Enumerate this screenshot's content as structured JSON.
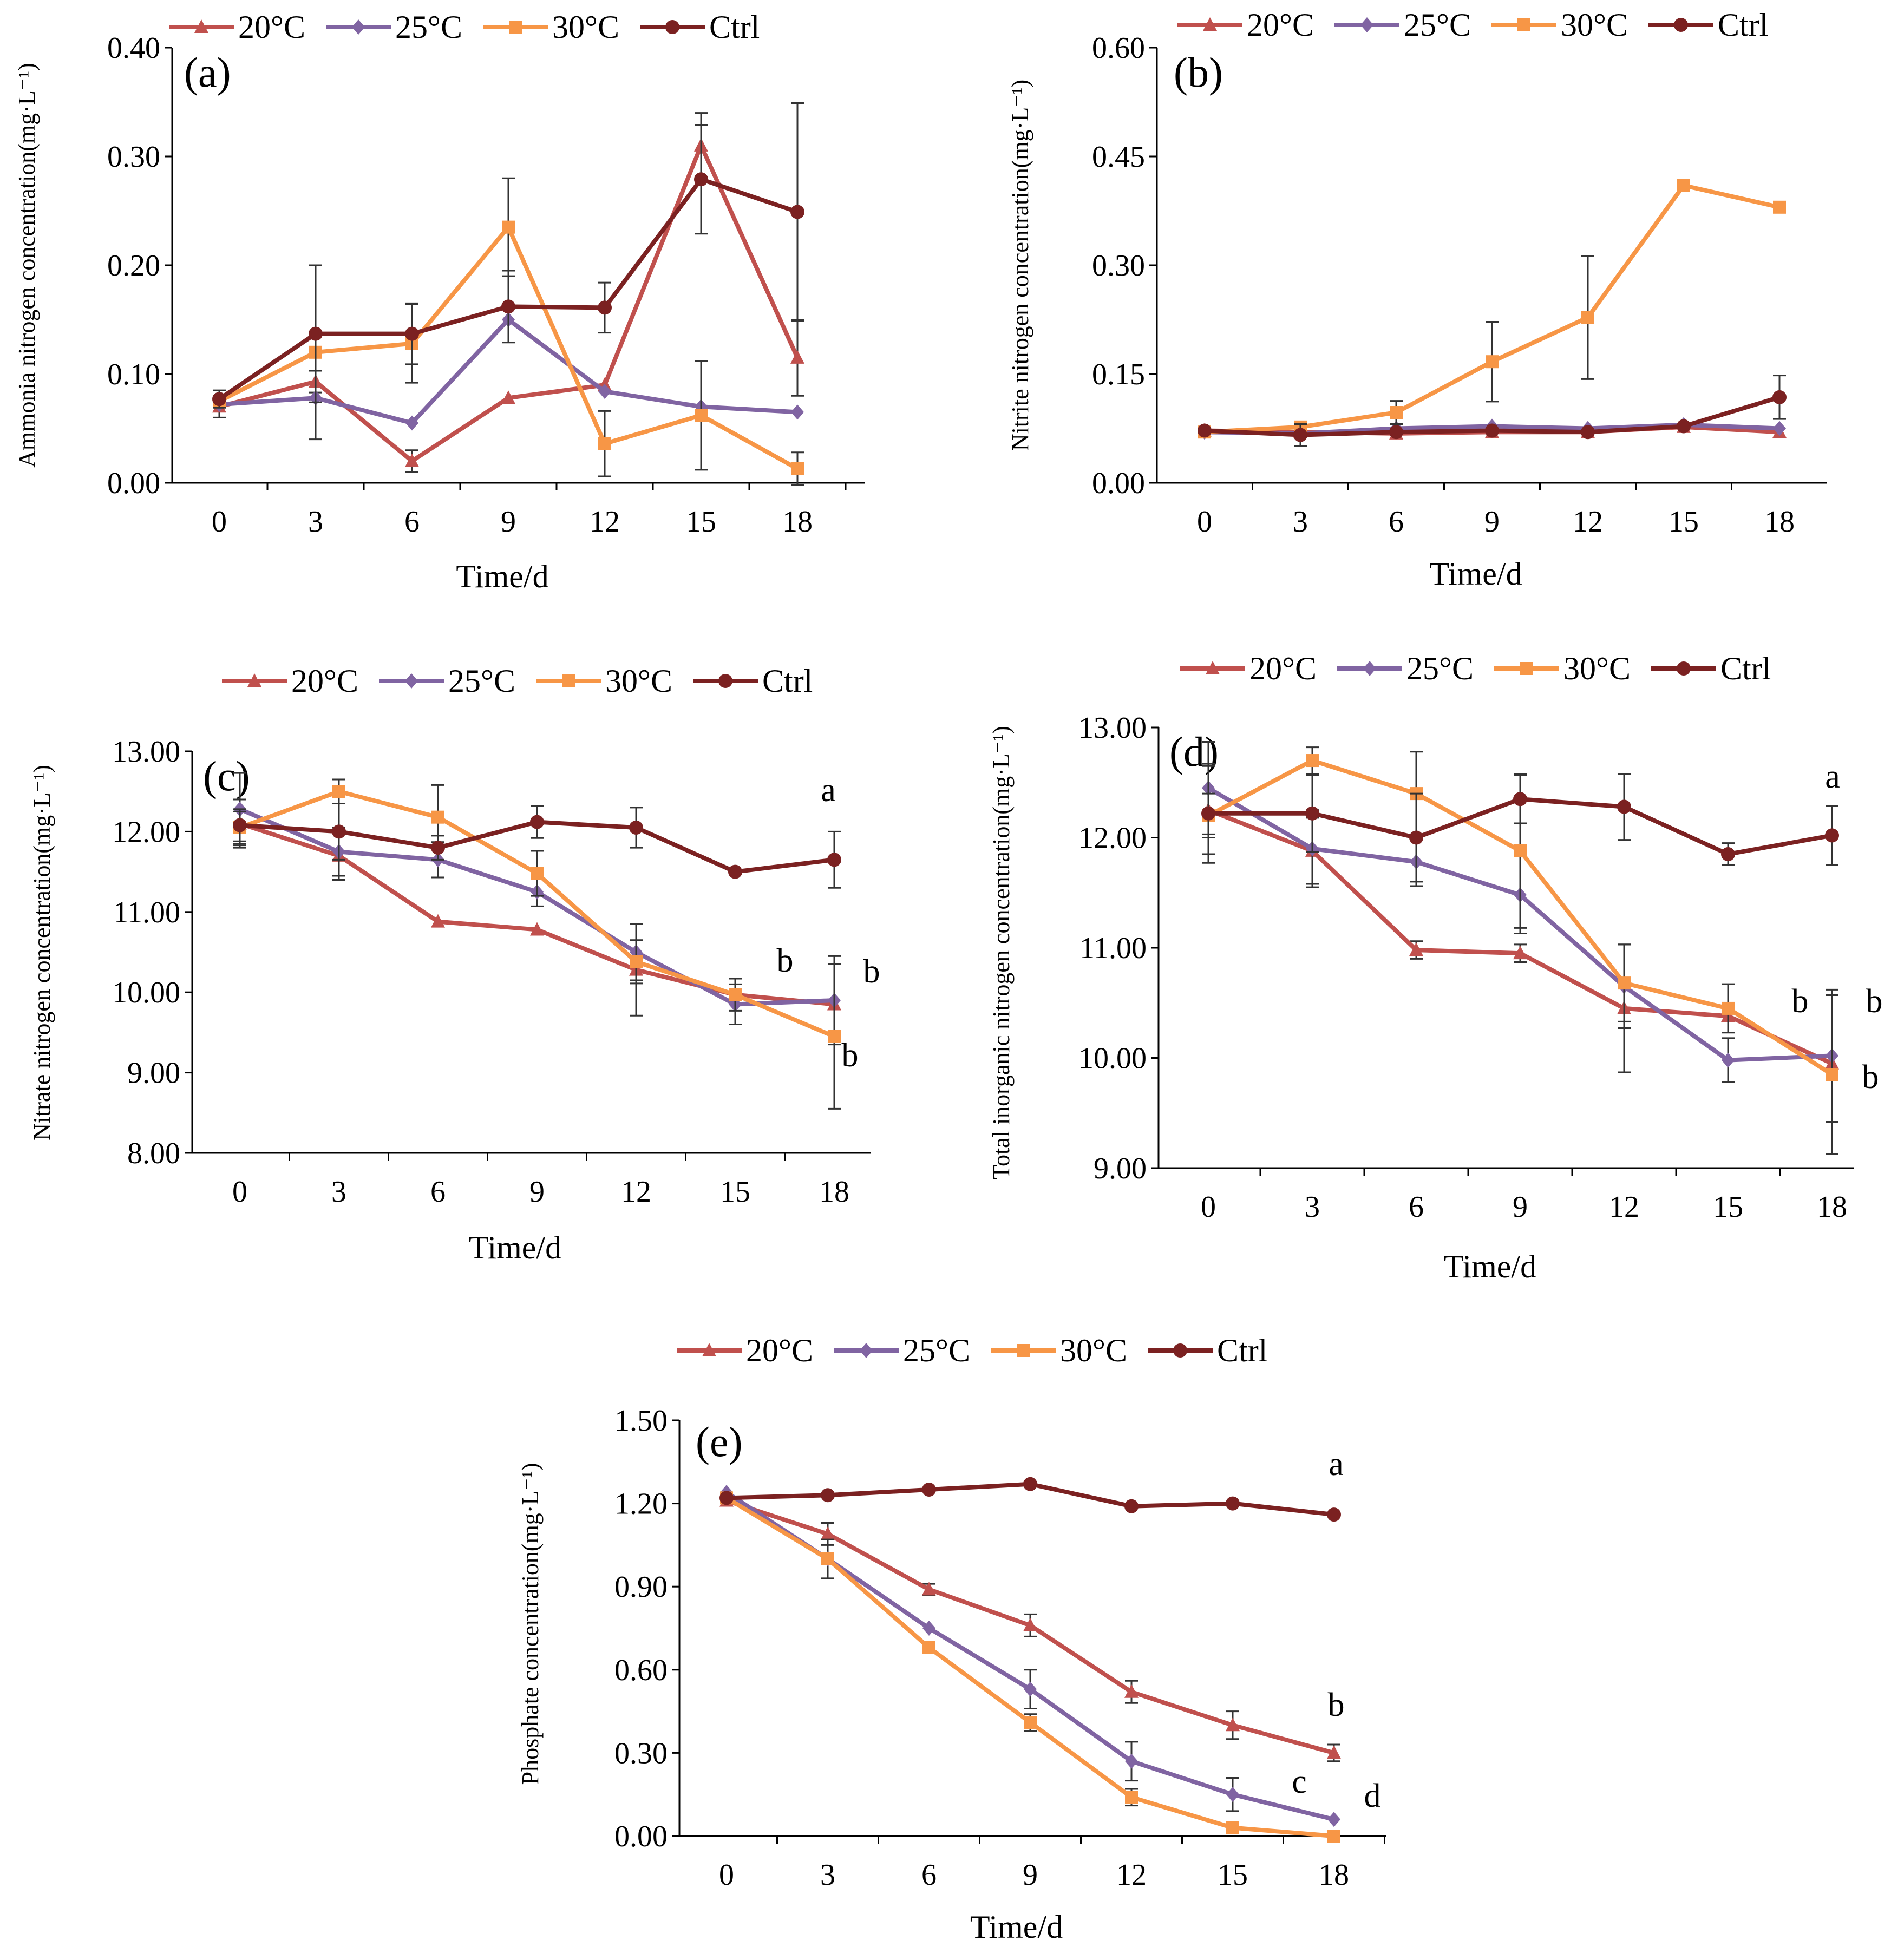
{
  "legend_labels": [
    "20°C",
    "25°C",
    "30°C",
    "Ctrl"
  ],
  "series_colors": {
    "20°C": "#c0504d",
    "25°C": "#8064a2",
    "30°C": "#f79646",
    "Ctrl": "#7b2121"
  },
  "marker_shapes": {
    "20°C": "triangle",
    "25°C": "diamond",
    "30°C": "square",
    "Ctrl": "circle"
  },
  "chart_data": [
    {
      "panel": "(a)",
      "type": "line",
      "xlabel": "Time/d",
      "ylabel": "Ammonia nitrogen concentration(mg·L⁻¹)",
      "x": [
        0,
        3,
        6,
        9,
        12,
        15,
        18
      ],
      "yticks": [
        "0.00",
        "0.10",
        "0.20",
        "0.30",
        "0.40"
      ],
      "ylim": [
        0,
        0.4
      ],
      "series": [
        {
          "name": "20°C",
          "values": [
            0.07,
            0.093,
            0.02,
            0.078,
            0.09,
            0.31,
            0.115
          ],
          "errors": [
            0.01,
            0.01,
            0.01,
            0.0,
            0.0,
            0.03,
            0.035
          ]
        },
        {
          "name": "25°C",
          "values": [
            0.072,
            0.078,
            0.055,
            0.15,
            0.084,
            0.07,
            0.065
          ],
          "errors": [
            0.0,
            0.0,
            0.0,
            0.0,
            0.0,
            0.0,
            0.0
          ]
        },
        {
          "name": "30°C",
          "values": [
            0.075,
            0.12,
            0.128,
            0.235,
            0.036,
            0.062,
            0.013
          ],
          "errors": [
            0.0,
            0.08,
            0.036,
            0.045,
            0.03,
            0.05,
            0.015
          ]
        },
        {
          "name": "Ctrl",
          "values": [
            0.077,
            0.137,
            0.137,
            0.162,
            0.161,
            0.279,
            0.249
          ],
          "errors": [
            0.008,
            0.063,
            0.028,
            0.033,
            0.023,
            0.05,
            0.1
          ]
        }
      ],
      "sig_labels": []
    },
    {
      "panel": "(b)",
      "type": "line",
      "xlabel": "Time/d",
      "ylabel": "Nitrite nitrogen concentration(mg·L⁻¹)",
      "x": [
        0,
        3,
        6,
        9,
        12,
        15,
        18
      ],
      "yticks": [
        "0.00",
        "0.15",
        "0.30",
        "0.45",
        "0.60"
      ],
      "ylim": [
        0,
        0.6
      ],
      "series": [
        {
          "name": "20°C",
          "values": [
            0.072,
            0.07,
            0.068,
            0.07,
            0.07,
            0.077,
            0.07
          ],
          "errors": [
            0,
            0,
            0,
            0,
            0,
            0,
            0
          ]
        },
        {
          "name": "25°C",
          "values": [
            0.07,
            0.068,
            0.075,
            0.078,
            0.075,
            0.08,
            0.075
          ],
          "errors": [
            0,
            0,
            0,
            0,
            0,
            0,
            0
          ]
        },
        {
          "name": "30°C",
          "values": [
            0.07,
            0.077,
            0.097,
            0.167,
            0.228,
            0.41,
            0.38
          ],
          "errors": [
            0,
            0,
            0.016,
            0.055,
            0.085,
            0,
            0
          ]
        },
        {
          "name": "Ctrl",
          "values": [
            0.072,
            0.066,
            0.07,
            0.072,
            0.07,
            0.078,
            0.118
          ],
          "errors": [
            0,
            0.015,
            0,
            0,
            0,
            0,
            0.03
          ]
        }
      ],
      "sig_labels": []
    },
    {
      "panel": "(c)",
      "type": "line",
      "xlabel": "Time/d",
      "ylabel": "Nitrate nitrogen concentration(mg·L⁻¹)",
      "x": [
        0,
        3,
        6,
        9,
        12,
        15,
        18
      ],
      "yticks": [
        "8.00",
        "9.00",
        "10.00",
        "11.00",
        "12.00",
        "13.00"
      ],
      "ylim": [
        8,
        13
      ],
      "series": [
        {
          "name": "20°C",
          "values": [
            12.1,
            11.7,
            10.88,
            10.78,
            10.28,
            9.97,
            9.85
          ],
          "errors": [
            0.3,
            0.3,
            0,
            0,
            0.57,
            0,
            0
          ]
        },
        {
          "name": "25°C",
          "values": [
            12.28,
            11.75,
            11.65,
            11.25,
            10.5,
            9.85,
            9.9
          ],
          "errors": [
            0.45,
            0.3,
            0.22,
            0.18,
            0.35,
            0.25,
            0.55
          ]
        },
        {
          "name": "30°C",
          "values": [
            12.05,
            12.5,
            12.18,
            11.48,
            10.38,
            9.97,
            9.45
          ],
          "errors": [
            0.2,
            0.15,
            0.4,
            0.28,
            0.27,
            0.2,
            0.9
          ]
        },
        {
          "name": "Ctrl",
          "values": [
            12.08,
            12.0,
            11.8,
            12.12,
            12.05,
            11.5,
            11.65
          ],
          "errors": [
            0.2,
            0.35,
            0.15,
            0.2,
            0.25,
            0,
            0.35
          ]
        }
      ],
      "sig_labels": [
        "a",
        "b",
        "b",
        "b"
      ]
    },
    {
      "panel": "(d)",
      "type": "line",
      "xlabel": "Time/d",
      "ylabel": "Total inorganic nitrogen concentration(mg·L⁻¹)",
      "x": [
        0,
        3,
        6,
        9,
        12,
        15,
        18
      ],
      "yticks": [
        "9.00",
        "10.00",
        "11.00",
        "12.00",
        "13.00"
      ],
      "ylim": [
        9,
        13
      ],
      "series": [
        {
          "name": "20°C",
          "values": [
            12.25,
            11.88,
            10.98,
            10.95,
            10.45,
            10.38,
            9.95
          ],
          "errors": [
            0.4,
            0.3,
            0.08,
            0.08,
            0.58,
            0,
            0
          ]
        },
        {
          "name": "25°C",
          "values": [
            12.45,
            11.9,
            11.78,
            11.48,
            10.65,
            9.98,
            10.02
          ],
          "errors": [
            0.42,
            0.35,
            0.22,
            0.35,
            0.38,
            0.2,
            0.6
          ]
        },
        {
          "name": "30°C",
          "values": [
            12.2,
            12.7,
            12.4,
            11.88,
            10.68,
            10.45,
            9.85
          ],
          "errors": [
            0.2,
            0.12,
            0.38,
            0.7,
            0.35,
            0.22,
            0.72
          ]
        },
        {
          "name": "Ctrl",
          "values": [
            12.22,
            12.22,
            12.0,
            12.35,
            12.28,
            11.85,
            12.02
          ],
          "errors": [
            0.45,
            0.35,
            0.4,
            0.22,
            0.3,
            0.1,
            0.27
          ]
        }
      ],
      "sig_labels": [
        "a",
        "b",
        "b",
        "b"
      ]
    },
    {
      "panel": "(e)",
      "type": "line",
      "xlabel": "Time/d",
      "ylabel": "Phosphate concentration(mg·L⁻¹)",
      "x": [
        0,
        3,
        6,
        9,
        12,
        15,
        18
      ],
      "yticks": [
        "0.00",
        "0.30",
        "0.60",
        "0.90",
        "1.20",
        "1.50"
      ],
      "ylim": [
        0,
        1.5
      ],
      "series": [
        {
          "name": "20°C",
          "values": [
            1.21,
            1.09,
            0.89,
            0.76,
            0.52,
            0.4,
            0.3
          ],
          "errors": [
            0,
            0.04,
            0.02,
            0.04,
            0.04,
            0.05,
            0.03
          ]
        },
        {
          "name": "25°C",
          "values": [
            1.24,
            1.0,
            0.75,
            0.53,
            0.27,
            0.15,
            0.06
          ],
          "errors": [
            0,
            0.07,
            0,
            0.07,
            0.07,
            0.06,
            0
          ]
        },
        {
          "name": "30°C",
          "values": [
            1.22,
            1.0,
            0.68,
            0.41,
            0.14,
            0.03,
            0.0
          ],
          "errors": [
            0,
            0,
            0,
            0.03,
            0.03,
            0,
            0
          ]
        },
        {
          "name": "Ctrl",
          "values": [
            1.22,
            1.23,
            1.25,
            1.27,
            1.19,
            1.2,
            1.16
          ],
          "errors": [
            0,
            0,
            0,
            0,
            0,
            0,
            0
          ]
        }
      ],
      "sig_labels": [
        "a",
        "b",
        "c",
        "d"
      ]
    }
  ]
}
